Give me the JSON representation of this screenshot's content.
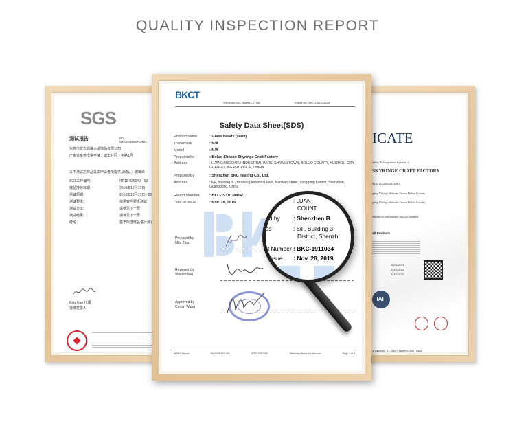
{
  "header": {
    "title": "QUALITY INSPECTION REPORT"
  },
  "left_cert": {
    "logo": "SGS",
    "heading": "测试报告",
    "number": "No. SZXEC1902713801",
    "lines": [
      "东莞市宏氏鼎晟水晶饰品有限公司",
      "广东省东莞市常平镇土塘工业区上午路1号"
    ],
    "intro": "以下测试之样品是由申请者所提供及确认：玻璃珠",
    "fields": [
      [
        "SGS工作编号：",
        "RP19-026240 - SZ"
      ],
      [
        "样品接收日期：",
        "2019年12月17日"
      ],
      [
        "测试周期：",
        "2019年12月17日 - 2019年1"
      ],
      [
        "测试要求：",
        "依据客户要求测试"
      ],
      [
        "测试方法：",
        "请参见下一页"
      ],
      [
        "测试结果：",
        "请参见下一页"
      ],
      [
        "结论：",
        "基于所送样品进行测试"
      ]
    ],
    "signer": "Kitty Kuo 代理",
    "signer_role": "批准签署人"
  },
  "center_cert": {
    "logo": "BKCT",
    "company": "Shenzhen BKC Testing Co., Ltd.",
    "report_no": "Report No.: BKC-19110344SR",
    "heading": "Safety Data Sheet(SDS)",
    "fields": [
      {
        "label": "Product name",
        "value": ": Glass Beads (sand)"
      },
      {
        "label": "Trademark",
        "value": ": N/A"
      },
      {
        "label": "Model",
        "value": ": N/A"
      },
      {
        "label": "Prepared for",
        "value": ": Boluo Shiwan Skyringe Craft Factory"
      },
      {
        "label": "Address",
        "value": ": LUANGANG DAFU INDUSTRIAL PARK, SHIWAN TOWN, BOLUO COUNTY, HUIZHOU CITY, GUANGDONG PROVINCE, CHINA"
      },
      {
        "label": "Prepared by",
        "value": ": Shenzhen BKC Testing Co., Ltd."
      },
      {
        "label": "Address",
        "value": ": 6/F, Building 3, Zhoubeng Industrial Park, Nanwan Street, Longgang District, Shenzhen, Guangdong, China"
      },
      {
        "label": "Report Number",
        "value": ": BKC-19110344SR"
      },
      {
        "label": "Date of issue",
        "value": ": Nov. 28, 2019"
      }
    ],
    "signatures": [
      {
        "role": "Prepared by",
        "name": "Mila Zhou"
      },
      {
        "role": "Reviewer by",
        "name": "Vincent Mei"
      },
      {
        "role": "Approved by",
        "name": "Corbin Wang"
      }
    ],
    "footer": {
      "left": "WSDS Report",
      "tel": "Tel:4008-879-392",
      "fax": "0755-32623341",
      "web": "Web:http://www.bkc-lab.com",
      "page": "Page 1 of 5"
    },
    "magnified": {
      "l1": ": LUAN",
      "l2": "COUNT",
      "l3a": "ed by",
      "l3b": ": Shenzhen B",
      "l4a": "ss",
      "l4b": ": 6/F, Building 3",
      "l4c": "District, Shenzh",
      "l5a": "rt Number",
      "l5b": ": BKC-1911034",
      "l6a": "f issue",
      "l6b": ": Nov. 28, 2019"
    }
  },
  "right_cert": {
    "heading": "ICATE",
    "intro": "uality Management System of",
    "company": "SKYRINGE CRAFT FACTORY",
    "code": "91441322304222600X",
    "addr1": "gang Village, Shiwan Town, Boluo County",
    "addr2": "gang Village, Shiwan Town, Boluo County",
    "conformance": "d found in conformance with the standard",
    "products": "aft Products",
    "dates": [
      "25/01/2018",
      "24/01/2021",
      "28/01/2021"
    ],
    "iaf": "IAF",
    "address_footer": "ia Lavoisier, 3 - 21047 Saronno (VA) - Italia"
  },
  "colors": {
    "frame": "#e6c79c",
    "title": "#6b6b6b",
    "bkc_blue": "#1f5fa8",
    "cert_navy": "#1b3556"
  }
}
